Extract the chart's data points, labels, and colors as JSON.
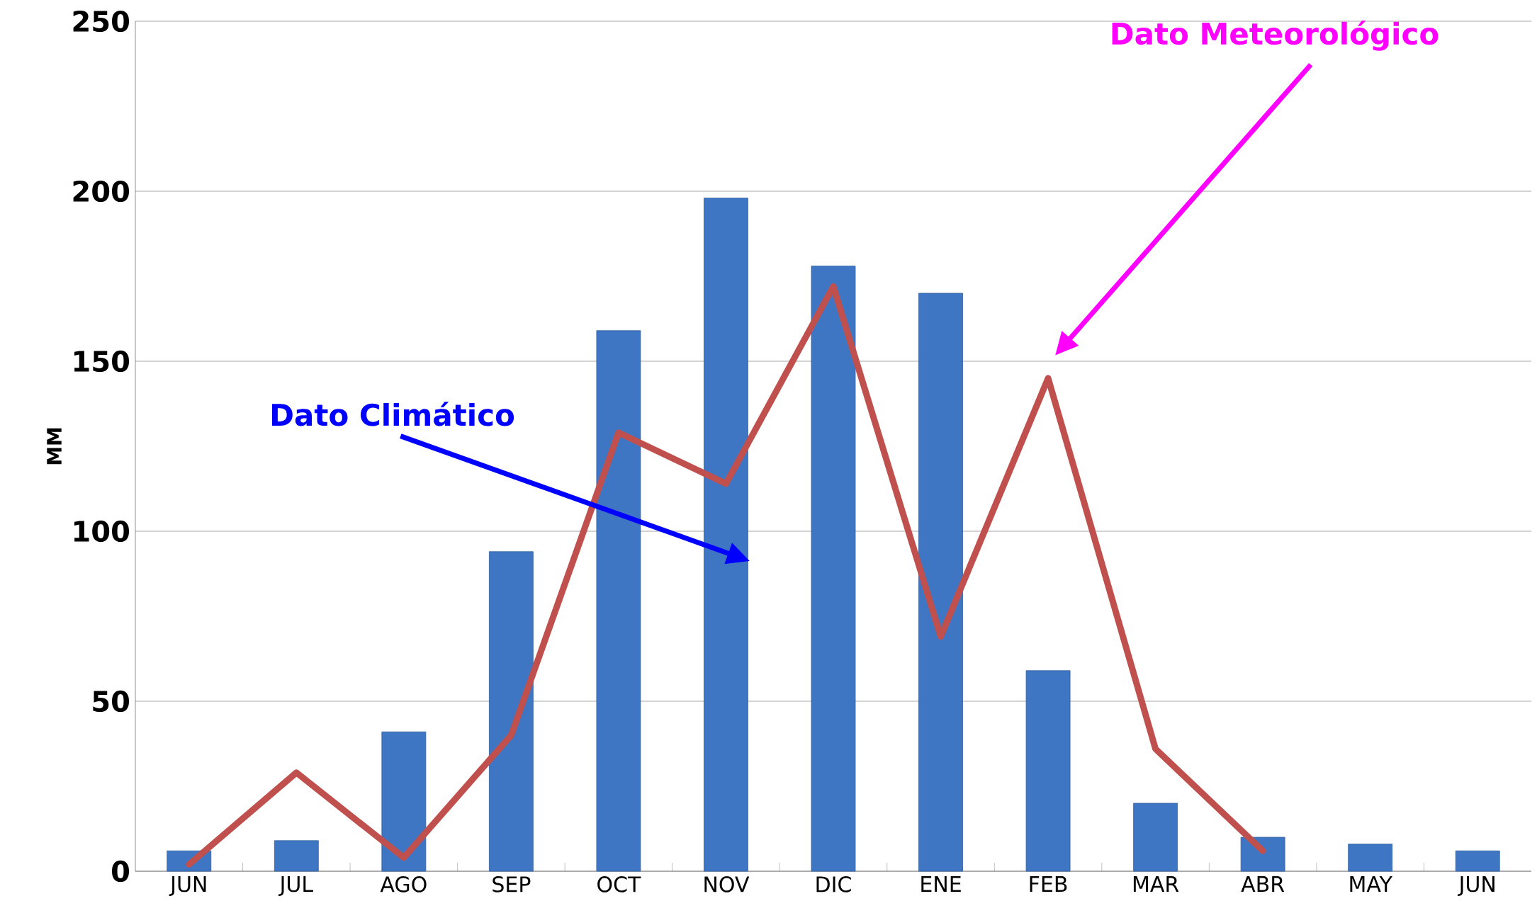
{
  "chart_data": {
    "type": "bar",
    "ylabel": "MM",
    "categories": [
      "JUN",
      "JUL",
      "AGO",
      "SEP",
      "OCT",
      "NOV",
      "DIC",
      "ENE",
      "FEB",
      "MAR",
      "ABR",
      "MAY",
      "JUN"
    ],
    "series": [
      {
        "color": "#3f76c4",
        "values": [
          6,
          9,
          41,
          94,
          159,
          198,
          178,
          170,
          59,
          20,
          10,
          8,
          6
        ]
      },
      {
        "type": "line",
        "color": "#c0504d",
        "values": [
          2,
          29,
          4,
          40,
          129,
          114,
          172,
          69,
          145,
          36,
          6,
          null,
          null
        ]
      }
    ],
    "ylim": [
      0,
      250
    ],
    "yticks": [
      0,
      50,
      100,
      150,
      200,
      250
    ],
    "grid": "y",
    "marker": "none",
    "line_style": "solid",
    "annotations": [
      "Dato Climático",
      "Dato Meteorológico"
    ]
  }
}
